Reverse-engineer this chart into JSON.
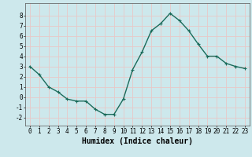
{
  "x": [
    0,
    1,
    2,
    3,
    4,
    5,
    6,
    7,
    8,
    9,
    10,
    11,
    12,
    13,
    14,
    15,
    16,
    17,
    18,
    19,
    20,
    21,
    22,
    23
  ],
  "y": [
    3.0,
    2.2,
    1.0,
    0.5,
    -0.2,
    -0.4,
    -0.4,
    -1.2,
    -1.7,
    -1.7,
    -0.2,
    2.7,
    4.4,
    6.5,
    7.2,
    8.2,
    7.5,
    6.5,
    5.2,
    4.0,
    4.0,
    3.3,
    3.0,
    2.8
  ],
  "line_color": "#1a6b5a",
  "marker": "+",
  "marker_size": 3,
  "xlabel": "Humidex (Indice chaleur)",
  "xlim": [
    -0.5,
    23.5
  ],
  "ylim": [
    -2.8,
    9.2
  ],
  "xticks": [
    0,
    1,
    2,
    3,
    4,
    5,
    6,
    7,
    8,
    9,
    10,
    11,
    12,
    13,
    14,
    15,
    16,
    17,
    18,
    19,
    20,
    21,
    22,
    23
  ],
  "yticks": [
    -2,
    -1,
    0,
    1,
    2,
    3,
    4,
    5,
    6,
    7,
    8
  ],
  "background_color": "#cde8ec",
  "grid_color": "#e8c8c8",
  "tick_label_fontsize": 5.5,
  "xlabel_fontsize": 7.0,
  "linewidth": 1.0
}
